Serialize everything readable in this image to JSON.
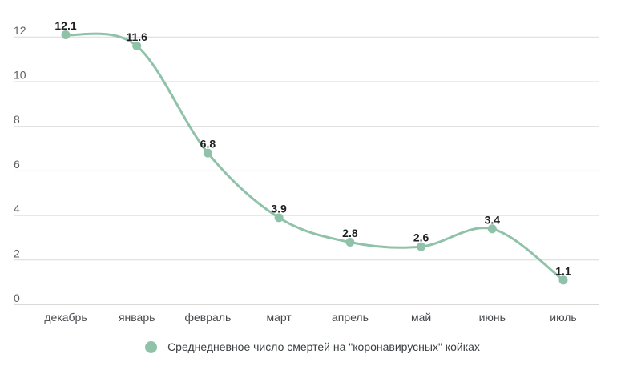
{
  "chart_data": {
    "type": "line",
    "curve": "smooth",
    "title": "",
    "categories": [
      "декабрь",
      "январь",
      "февраль",
      "март",
      "апрель",
      "май",
      "июнь",
      "июль"
    ],
    "series": [
      {
        "name": "Среднедневное число смертей на \"коронавирусных\" койках",
        "values": [
          12.1,
          11.6,
          6.8,
          3.9,
          2.8,
          2.6,
          3.4,
          1.1
        ],
        "color": "#90c2aa"
      }
    ],
    "xlabel": "",
    "ylabel": "",
    "ylim": [
      0,
      12
    ],
    "yticks": [
      0,
      2,
      4,
      6,
      8,
      10,
      12
    ],
    "grid": true,
    "data_labels": true,
    "legend_position": "bottom"
  },
  "colors": {
    "background": "#ffffff",
    "line": "#90c2aa",
    "point": "#90c2aa",
    "gridline": "#d9d9d9",
    "y_tick_text": "#5b5f63",
    "x_tick_text": "#45494d",
    "data_label_text": "#1d1f20",
    "legend_text": "#3c4043"
  }
}
